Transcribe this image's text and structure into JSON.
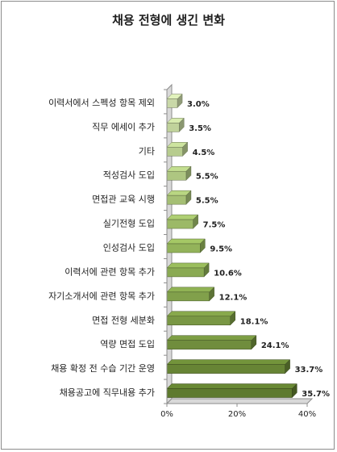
{
  "chart_data": {
    "type": "bar",
    "orientation": "horizontal",
    "title": "채용 전형에 생긴 변화",
    "categories": [
      "이력서에서 스펙성 항목 제외",
      "직무 에세이 추가",
      "기타",
      "적성검사 도입",
      "면접관 교육 시행",
      "실기전형 도입",
      "인성검사 도입",
      "이력서에 관련 항목 추가",
      "자기소개서에 관련 항목 추가",
      "면접 전형 세분화",
      "역량 면접 도입",
      "채용 확정 전 수습 기간 운영",
      "채용공고에 직무내용 추가"
    ],
    "values": [
      3.0,
      3.5,
      4.5,
      5.5,
      5.5,
      7.5,
      9.5,
      10.6,
      12.1,
      18.1,
      24.1,
      33.7,
      35.7
    ],
    "value_labels": [
      "3.0%",
      "3.5%",
      "4.5%",
      "5.5%",
      "5.5%",
      "7.5%",
      "9.5%",
      "10.6%",
      "12.1%",
      "18.1%",
      "24.1%",
      "33.7%",
      "35.7%"
    ],
    "xlim": [
      0,
      40
    ],
    "x_ticks": [
      "0%",
      "20%",
      "40%"
    ],
    "grid": false,
    "style": "3d",
    "colors": {
      "light": "#c9d8a8",
      "mid": "#93b35a",
      "dark": "#5e7a2e"
    }
  }
}
